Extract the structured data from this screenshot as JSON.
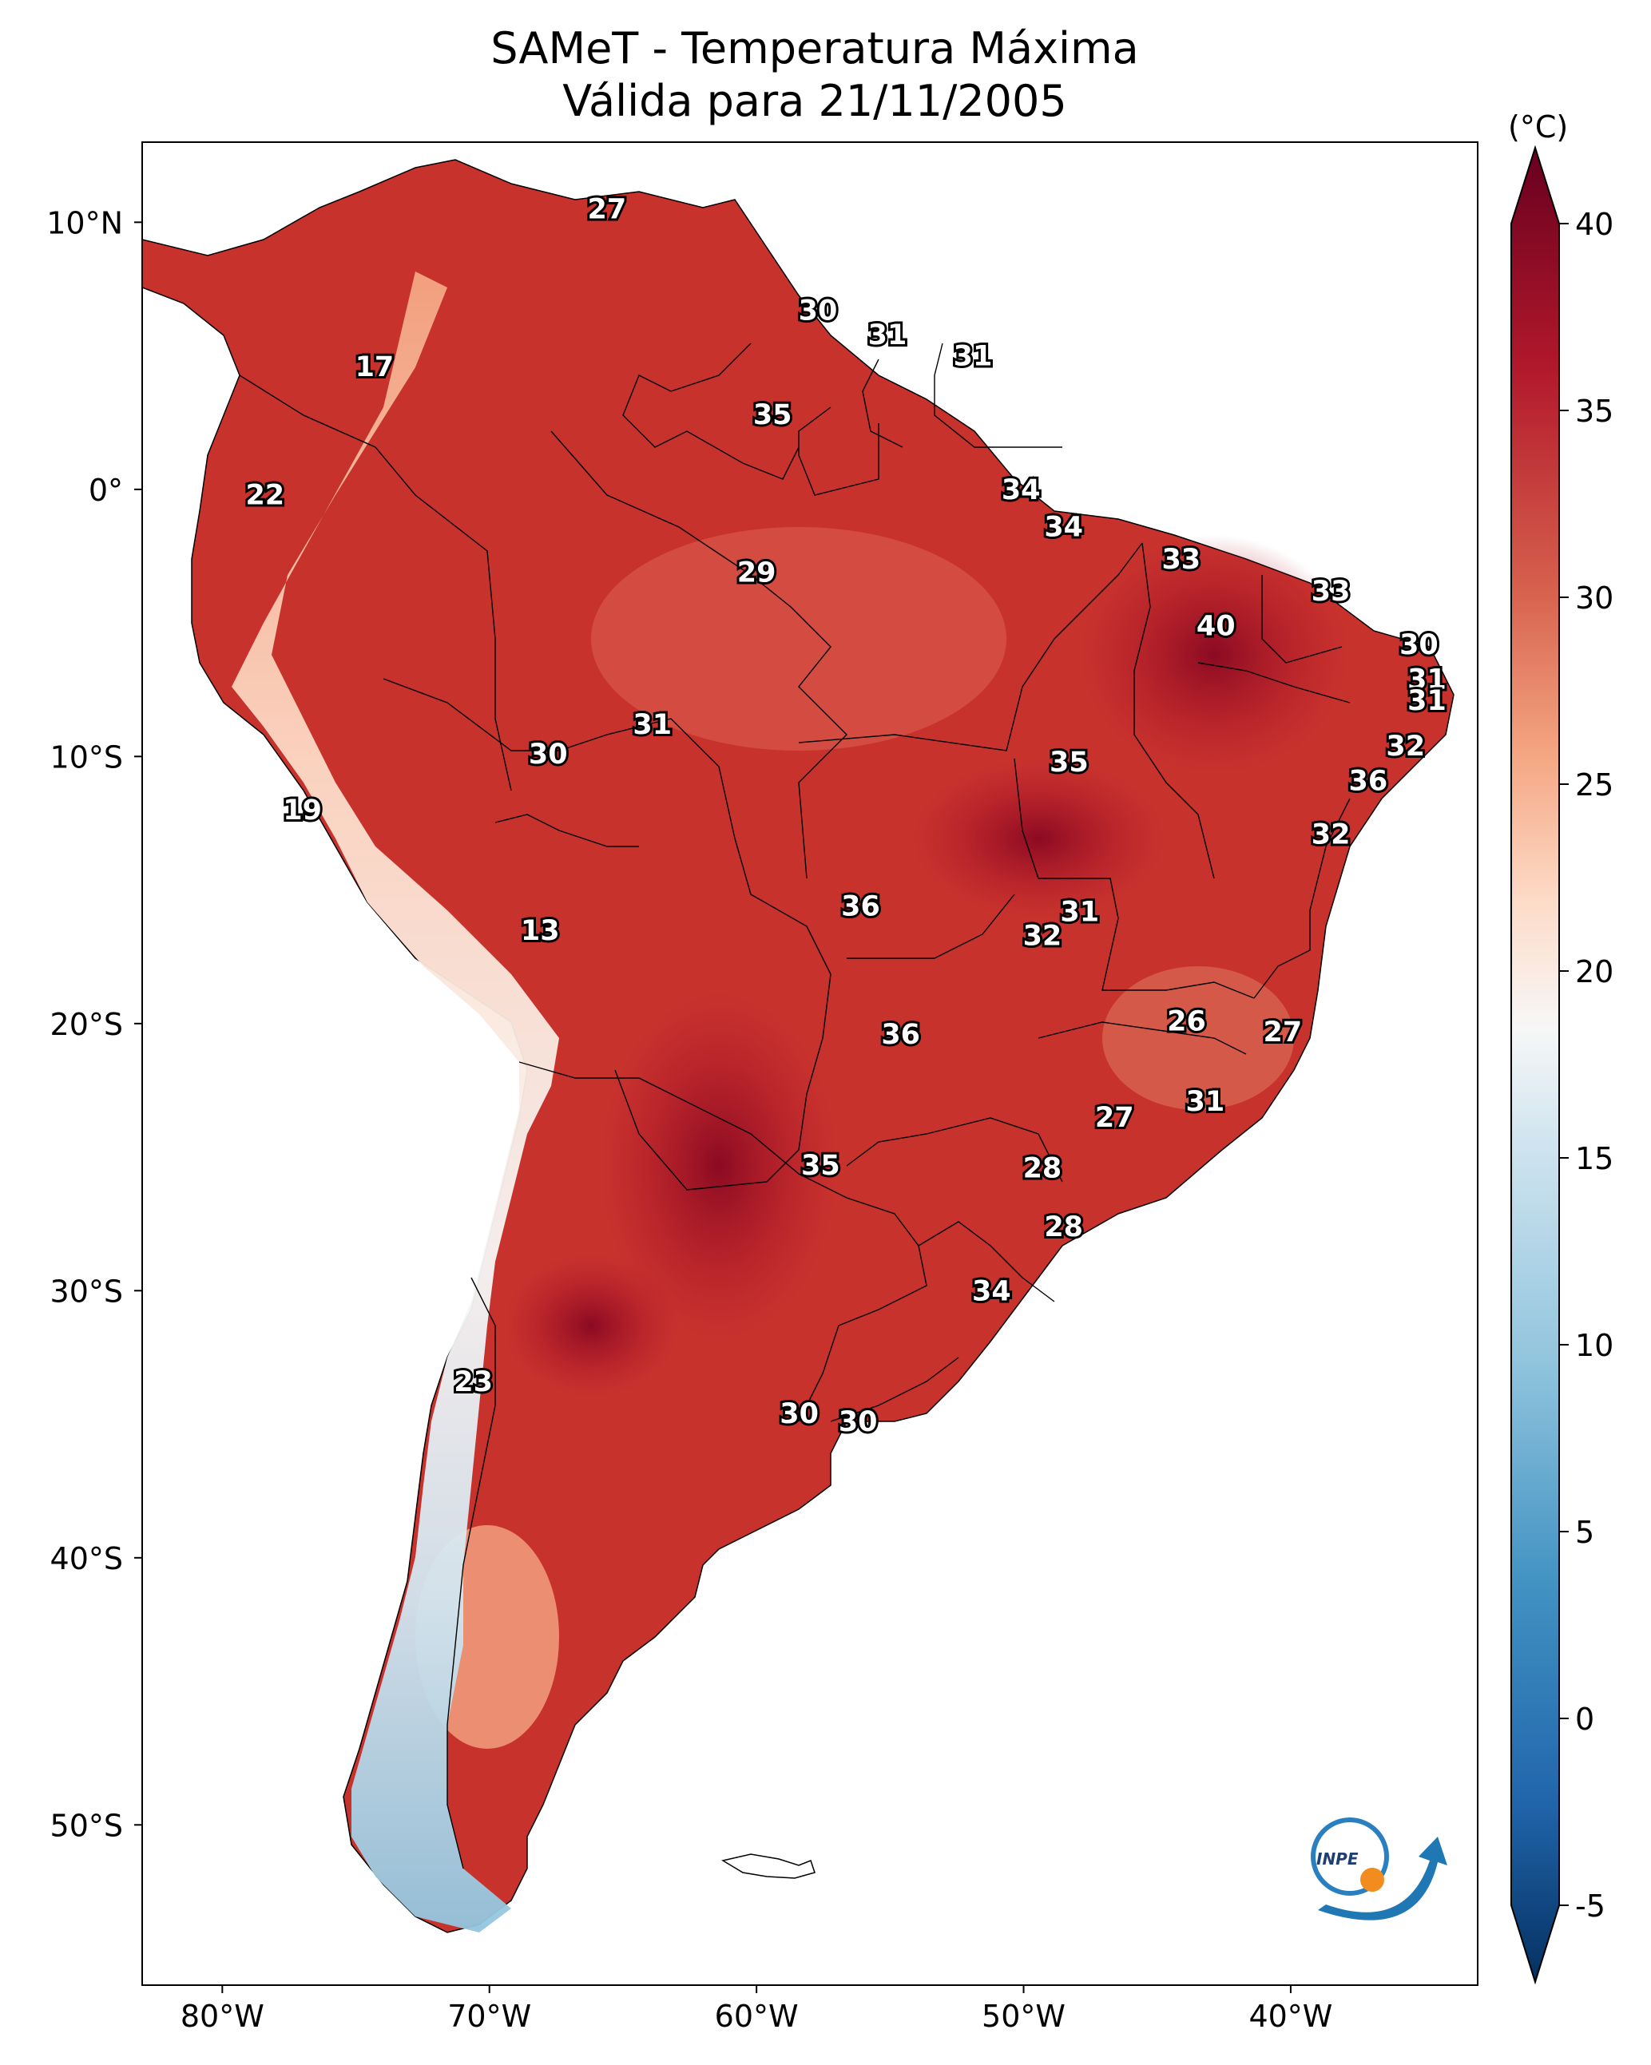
{
  "title": {
    "line1": "SAMeT - Temperatura Máxima",
    "line2": "Válida para 21/11/2005"
  },
  "map": {
    "lon_ticks": [
      "80°W",
      "70°W",
      "60°W",
      "50°W",
      "40°W"
    ],
    "lat_ticks": [
      "10°N",
      "0°",
      "10°S",
      "20°S",
      "30°S",
      "40°S",
      "50°S"
    ],
    "extent": {
      "lon": [
        -83,
        -33
      ],
      "lat": [
        -56,
        13
      ]
    }
  },
  "colorbar": {
    "unit": "(°C)",
    "ticks": [
      "40",
      "35",
      "30",
      "25",
      "20",
      "15",
      "10",
      "5",
      "0",
      "-5"
    ],
    "range": [
      -5,
      40
    ],
    "colors": [
      "#053061",
      "#2166ac",
      "#4393c3",
      "#92c5de",
      "#d1e5f0",
      "#f7f7f7",
      "#fddbc7",
      "#f4a582",
      "#d6604d",
      "#b2182b",
      "#67001f"
    ]
  },
  "stations": [
    {
      "v": "27",
      "lon": -65.6,
      "lat": 10.5
    },
    {
      "v": "30",
      "lon": -57.7,
      "lat": 6.7
    },
    {
      "v": "31",
      "lon": -55.1,
      "lat": 5.8
    },
    {
      "v": "31",
      "lon": -51.9,
      "lat": 5.0
    },
    {
      "v": "17",
      "lon": -74.3,
      "lat": 4.6
    },
    {
      "v": "35",
      "lon": -59.4,
      "lat": 2.8
    },
    {
      "v": "34",
      "lon": -50.1,
      "lat": 0.0
    },
    {
      "v": "22",
      "lon": -78.4,
      "lat": -0.2
    },
    {
      "v": "34",
      "lon": -48.5,
      "lat": -1.4
    },
    {
      "v": "33",
      "lon": -44.1,
      "lat": -2.6
    },
    {
      "v": "29",
      "lon": -60.0,
      "lat": -3.1
    },
    {
      "v": "33",
      "lon": -38.5,
      "lat": -3.8
    },
    {
      "v": "40",
      "lon": -42.8,
      "lat": -5.1
    },
    {
      "v": "30",
      "lon": -35.2,
      "lat": -5.8
    },
    {
      "v": "31",
      "lon": -34.9,
      "lat": -7.1
    },
    {
      "v": "31",
      "lon": -34.9,
      "lat": -7.9
    },
    {
      "v": "31",
      "lon": -63.9,
      "lat": -8.8
    },
    {
      "v": "32",
      "lon": -35.7,
      "lat": -9.6
    },
    {
      "v": "30",
      "lon": -67.8,
      "lat": -9.9
    },
    {
      "v": "35",
      "lon": -48.3,
      "lat": -10.2
    },
    {
      "v": "36",
      "lon": -37.1,
      "lat": -10.9
    },
    {
      "v": "19",
      "lon": -77.0,
      "lat": -12.0
    },
    {
      "v": "32",
      "lon": -38.5,
      "lat": -12.9
    },
    {
      "v": "36",
      "lon": -56.1,
      "lat": -15.6
    },
    {
      "v": "31",
      "lon": -47.9,
      "lat": -15.8
    },
    {
      "v": "13",
      "lon": -68.1,
      "lat": -16.5
    },
    {
      "v": "32",
      "lon": -49.3,
      "lat": -16.7
    },
    {
      "v": "26",
      "lon": -43.9,
      "lat": -19.9
    },
    {
      "v": "27",
      "lon": -40.3,
      "lat": -20.3
    },
    {
      "v": "36",
      "lon": -54.6,
      "lat": -20.4
    },
    {
      "v": "31",
      "lon": -43.2,
      "lat": -22.9
    },
    {
      "v": "27",
      "lon": -46.6,
      "lat": -23.5
    },
    {
      "v": "35",
      "lon": -57.6,
      "lat": -25.3
    },
    {
      "v": "28",
      "lon": -49.3,
      "lat": -25.4
    },
    {
      "v": "28",
      "lon": -48.5,
      "lat": -27.6
    },
    {
      "v": "34",
      "lon": -51.2,
      "lat": -30.0
    },
    {
      "v": "23",
      "lon": -70.6,
      "lat": -33.4
    },
    {
      "v": "30",
      "lon": -58.4,
      "lat": -34.6
    },
    {
      "v": "30",
      "lon": -56.2,
      "lat": -34.9
    }
  ],
  "logo": {
    "text": "INPE"
  }
}
